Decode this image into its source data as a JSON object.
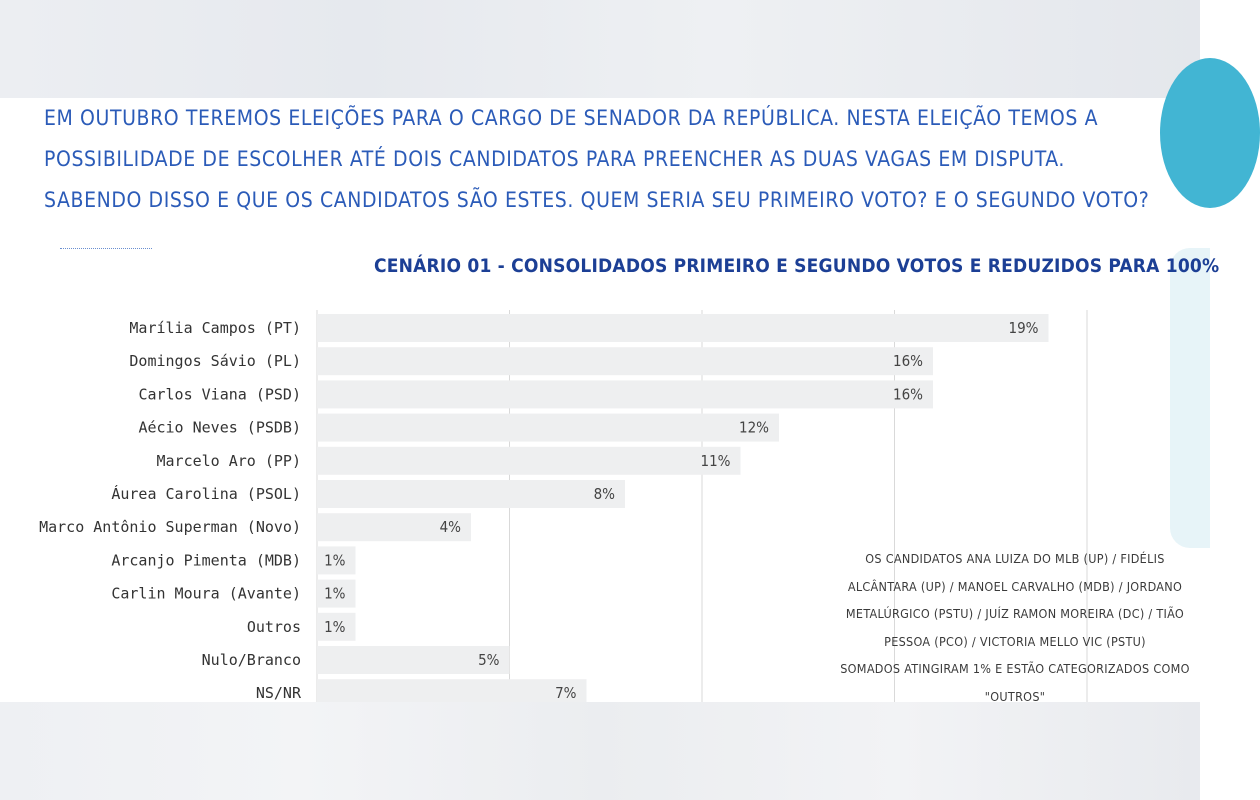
{
  "question": {
    "lines": [
      "EM OUTUBRO TEREMOS ELEIÇÕES PARA O CARGO DE SENADOR DA REPÚBLICA. NESTA ELEIÇÃO TEMOS A",
      "POSSIBILIDADE DE ESCOLHER ATÉ DOIS CANDIDATOS PARA PREENCHER AS DUAS VAGAS EM DISPUTA.",
      "SABENDO DISSO E QUE OS CANDIDATOS SÃO ESTES. QUEM SERIA SEU PRIMEIRO VOTO? E O SEGUNDO VOTO?"
    ]
  },
  "note": {
    "lines": [
      "OS CANDIDATOS ANA LUIZA DO MLB (UP) / FIDÉLIS",
      "ALCÂNTARA (UP) / MANOEL CARVALHO (MDB) / JORDANO",
      "METALÚRGICO (PSTU) / JUÍZ RAMON MOREIRA (DC) / TIÃO",
      "PESSOA (PCO) / VICTORIA MELLO VIC (PSTU)",
      "SOMADOS ATINGIRAM 1% E ESTÃO CATEGORIZADOS COMO",
      "\"OUTROS\""
    ]
  },
  "colors": {
    "question_text": "#2b5bb8",
    "title_text": "#1c3f95",
    "bar_fill": "#eeeff0",
    "grid": "#d9d9d9",
    "accent": "#42b5d3"
  },
  "chart_data": {
    "type": "bar",
    "orientation": "horizontal",
    "title": "CENÁRIO 01 - CONSOLIDADOS PRIMEIRO E SEGUNDO VOTOS E REDUZIDOS PARA 100%",
    "categories": [
      "Marília Campos (PT)",
      "Domingos Sávio (PL)",
      "Carlos Viana (PSD)",
      "Aécio Neves (PSDB)",
      "Marcelo Aro (PP)",
      "Áurea Carolina (PSOL)",
      "Marco Antônio Superman (Novo)",
      "Arcanjo Pimenta (MDB)",
      "Carlin Moura (Avante)",
      "Outros",
      "Nulo/Branco",
      "NS/NR"
    ],
    "values": [
      19,
      16,
      16,
      12,
      11,
      8,
      4,
      1,
      1,
      1,
      5,
      7
    ],
    "value_labels": [
      "19%",
      "16%",
      "16%",
      "12%",
      "11%",
      "8%",
      "4%",
      "1%",
      "1%",
      "1%",
      "5%",
      "7%"
    ],
    "xlim": [
      0,
      20
    ],
    "grid": true
  }
}
